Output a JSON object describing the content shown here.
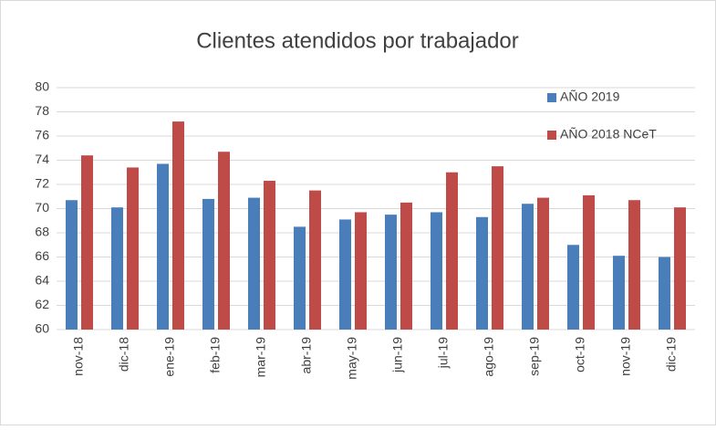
{
  "chart_data": {
    "type": "bar",
    "title": "Clientes atendidos por trabajador",
    "categories": [
      "nov-18",
      "dic-18",
      "ene-19",
      "feb-19",
      "mar-19",
      "abr-19",
      "may-19",
      "jun-19",
      "jul-19",
      "ago-19",
      "sep-19",
      "oct-19",
      "nov-19",
      "dic-19"
    ],
    "series": [
      {
        "name": "AÑO 2019",
        "color": "#4a7ebb",
        "values": [
          70.7,
          70.1,
          73.7,
          70.8,
          70.9,
          68.5,
          69.1,
          69.5,
          69.7,
          69.3,
          70.4,
          67.0,
          66.1,
          66.0
        ]
      },
      {
        "name": "AÑO 2018 NCeT",
        "color": "#be4b48",
        "values": [
          74.4,
          73.4,
          77.2,
          74.7,
          72.3,
          71.5,
          69.7,
          70.5,
          73.0,
          73.5,
          70.9,
          71.1,
          70.7,
          70.1
        ]
      }
    ],
    "ylim": [
      60,
      80
    ],
    "yticks": [
      60,
      62,
      64,
      66,
      68,
      70,
      72,
      74,
      76,
      78,
      80
    ],
    "grid": true,
    "legend": "top-right"
  }
}
